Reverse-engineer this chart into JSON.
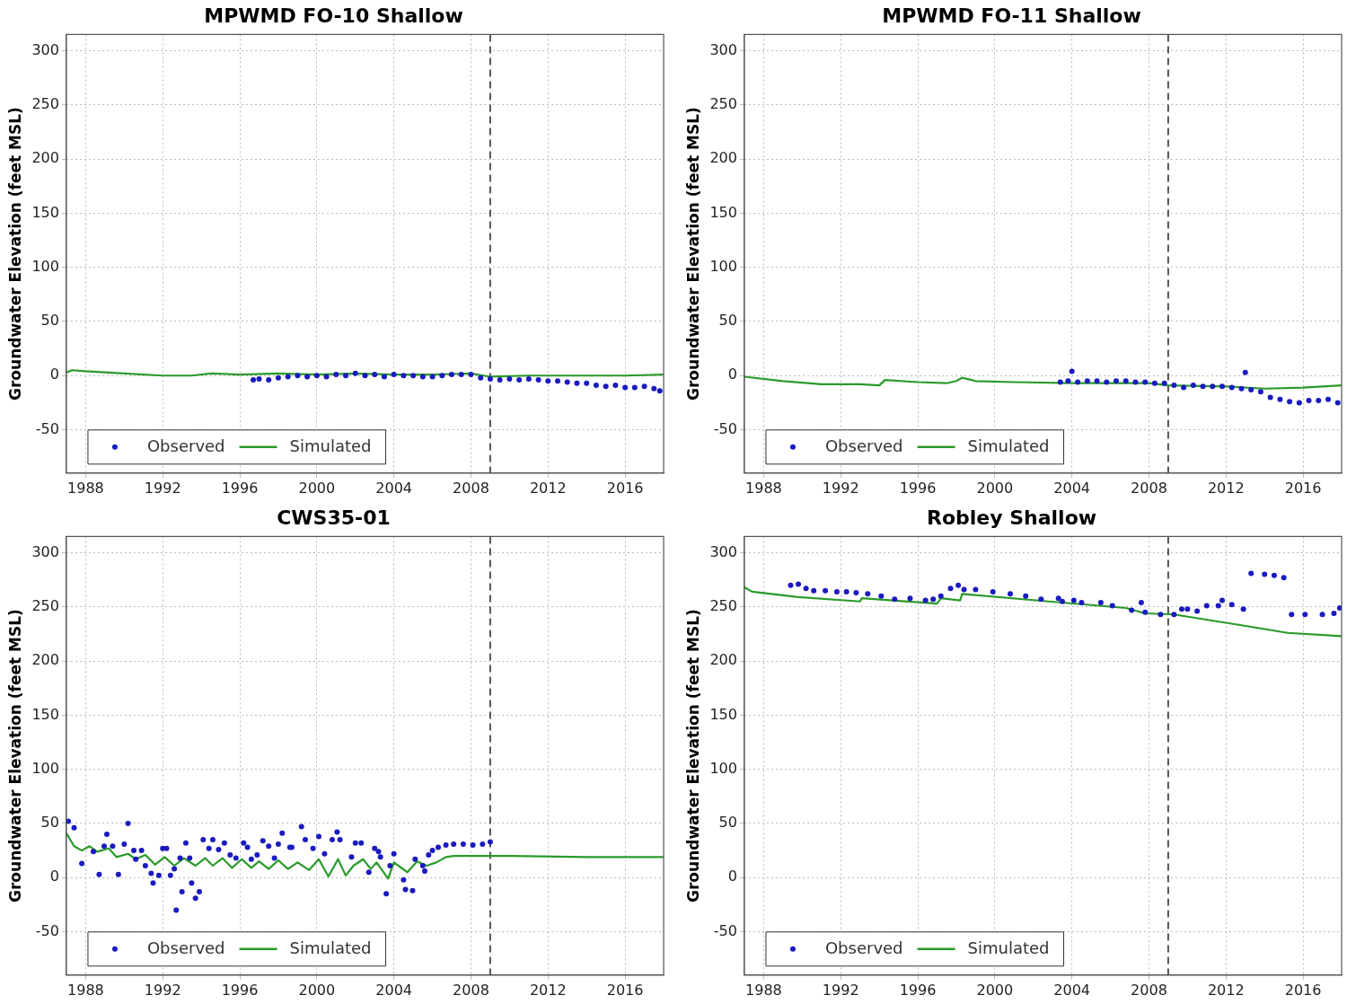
{
  "chart_data": [
    {
      "type": "line",
      "title": "MPWMD FO-10 Shallow",
      "ylabel": "Groundwater Elevation (feet MSL)",
      "xlim": [
        1987,
        2018
      ],
      "xticks": [
        1988,
        1992,
        1996,
        2000,
        2004,
        2008,
        2012,
        2016
      ],
      "ylim": [
        -90,
        315
      ],
      "yticks": [
        -50,
        0,
        50,
        100,
        150,
        200,
        250,
        300
      ],
      "grid": true,
      "legend": "bottom left",
      "ref_lines": [
        {
          "axis": "x",
          "value": 2009,
          "color": "#000000",
          "line_style": "dashed"
        }
      ],
      "series": [
        {
          "name": "Observed",
          "type": "scatter",
          "marker": "circle",
          "color": "#1a1ac0",
          "x": [
            1996.7,
            1997,
            1997.5,
            1998,
            1998.5,
            1999,
            1999.5,
            2000,
            2000.5,
            2001,
            2001.5,
            2002,
            2002.5,
            2003,
            2003.5,
            2004,
            2004.5,
            2005,
            2005.5,
            2006,
            2006.5,
            2007,
            2007.5,
            2008,
            2008.5,
            2009,
            2009.5,
            2010,
            2010.5,
            2011,
            2011.5,
            2012,
            2012.5,
            2013,
            2013.5,
            2014,
            2014.5,
            2015,
            2015.5,
            2016,
            2016.5,
            2017,
            2017.5,
            2017.8
          ],
          "values": [
            -4,
            -3,
            -4,
            -2,
            -1,
            0,
            -1,
            0,
            -1,
            1,
            0,
            2,
            0,
            1,
            -1,
            1,
            0,
            0,
            -1,
            -1,
            0,
            1,
            1,
            1,
            -2,
            -3,
            -4,
            -3,
            -4,
            -3,
            -4,
            -5,
            -5,
            -6,
            -7,
            -7,
            -9,
            -10,
            -9,
            -11,
            -11,
            -10,
            -12,
            -14
          ]
        },
        {
          "name": "Simulated",
          "type": "line",
          "color": "#2a9a2a",
          "x": [
            1987,
            1987.3,
            1988,
            1990,
            1992,
            1993.5,
            1994.5,
            1996,
            1998,
            2000,
            2002,
            2004,
            2006,
            2008,
            2009,
            2011,
            2014,
            2016,
            2018
          ],
          "values": [
            3,
            5,
            4,
            2,
            0,
            0,
            2,
            1,
            2,
            1,
            2,
            1,
            1,
            2,
            -1,
            0,
            0,
            0,
            1
          ]
        }
      ]
    },
    {
      "type": "line",
      "title": "MPWMD FO-11 Shallow",
      "ylabel": "Groundwater Elevation (feet MSL)",
      "xlim": [
        1987,
        2018
      ],
      "xticks": [
        1988,
        1992,
        1996,
        2000,
        2004,
        2008,
        2012,
        2016
      ],
      "ylim": [
        -90,
        315
      ],
      "yticks": [
        -50,
        0,
        50,
        100,
        150,
        200,
        250,
        300
      ],
      "grid": true,
      "legend": "bottom left",
      "ref_lines": [
        {
          "axis": "x",
          "value": 2009,
          "color": "#000000",
          "line_style": "dashed"
        }
      ],
      "series": [
        {
          "name": "Observed",
          "type": "scatter",
          "marker": "circle",
          "color": "#1a1ac0",
          "x": [
            2003.4,
            2003.8,
            2004.0,
            2004.3,
            2004.8,
            2005.3,
            2005.8,
            2006.3,
            2006.8,
            2007.3,
            2007.8,
            2008.3,
            2008.8,
            2009.3,
            2009.8,
            2010.3,
            2010.8,
            2011.3,
            2011.8,
            2012.3,
            2012.8,
            2013.0,
            2013.3,
            2013.8,
            2014.3,
            2014.8,
            2015.3,
            2015.8,
            2016.3,
            2016.8,
            2017.3,
            2017.8
          ],
          "values": [
            -6,
            -5,
            4,
            -6,
            -5,
            -5,
            -6,
            -5,
            -5,
            -6,
            -6,
            -7,
            -7,
            -9,
            -11,
            -9,
            -10,
            -10,
            -10,
            -11,
            -12,
            3,
            -13,
            -15,
            -20,
            -22,
            -24,
            -25,
            -23,
            -23,
            -22,
            -25
          ]
        },
        {
          "name": "Simulated",
          "type": "line",
          "color": "#2a9a2a",
          "x": [
            1987,
            1989,
            1991,
            1993,
            1994,
            1994.3,
            1996,
            1997.5,
            1998,
            1998.3,
            1999,
            2001,
            2004,
            2008,
            2009,
            2012,
            2014,
            2016,
            2018
          ],
          "values": [
            -1,
            -5,
            -8,
            -8,
            -9,
            -4,
            -6,
            -7,
            -5,
            -2,
            -5,
            -6,
            -7,
            -7,
            -9,
            -10,
            -12,
            -11,
            -9
          ]
        }
      ]
    },
    {
      "type": "line",
      "title": "CWS35-01",
      "ylabel": "Groundwater Elevation (feet MSL)",
      "xlim": [
        1987,
        2018
      ],
      "xticks": [
        1988,
        1992,
        1996,
        2000,
        2004,
        2008,
        2012,
        2016
      ],
      "ylim": [
        -90,
        315
      ],
      "yticks": [
        -50,
        0,
        50,
        100,
        150,
        200,
        250,
        300
      ],
      "grid": true,
      "legend": "bottom left",
      "ref_lines": [
        {
          "axis": "x",
          "value": 2009,
          "color": "#000000",
          "line_style": "dashed"
        }
      ],
      "series": [
        {
          "name": "Observed",
          "type": "scatter",
          "marker": "circle",
          "color": "#1a1ac0",
          "x": [
            1987.1,
            1987.4,
            1987.8,
            1988.4,
            1988.7,
            1988.96,
            1989.1,
            1989.4,
            1989.7,
            1990.0,
            1990.2,
            1990.5,
            1990.6,
            1990.9,
            1991.1,
            1991.4,
            1991.5,
            1991.8,
            1992.0,
            1992.2,
            1992.4,
            1992.6,
            1992.7,
            1992.9,
            1993.0,
            1993.2,
            1993.4,
            1993.5,
            1993.7,
            1993.9,
            1994.1,
            1994.4,
            1994.6,
            1994.9,
            1995.2,
            1995.5,
            1995.8,
            1996.2,
            1996.4,
            1996.6,
            1996.9,
            1997.2,
            1997.5,
            1997.8,
            1998.0,
            1998.2,
            1998.6,
            1998.7,
            1999.2,
            1999.4,
            1999.8,
            2000.1,
            2000.4,
            2000.8,
            2001.05,
            2001.2,
            2001.8,
            2002.0,
            2002.3,
            2002.7,
            2003.0,
            2003.2,
            2003.3,
            2003.6,
            2003.8,
            2004.0,
            2004.5,
            2004.6,
            2004.97,
            2005.1,
            2005.5,
            2005.6,
            2005.8,
            2006.0,
            2006.3,
            2006.7,
            2007.1,
            2007.6,
            2008.1,
            2008.6,
            2009.0
          ],
          "values": [
            52,
            46,
            13,
            24,
            3,
            29,
            40,
            29,
            3,
            31,
            50,
            25,
            17,
            25,
            11,
            4,
            -5,
            2,
            27,
            27,
            2,
            8,
            -30,
            18,
            -13,
            32,
            18,
            -5,
            -19,
            -13,
            35,
            27,
            35,
            26,
            32,
            21,
            18,
            32,
            28,
            17,
            21,
            34,
            29,
            18,
            31,
            41,
            28,
            28,
            47,
            35,
            27,
            38,
            22,
            35,
            42,
            35,
            19,
            32,
            32,
            5,
            27,
            24,
            19,
            -15,
            11,
            22,
            -2,
            -11,
            -12,
            17,
            11,
            6,
            21,
            25,
            28,
            30,
            31,
            31,
            30,
            31,
            33
          ]
        },
        {
          "name": "Simulated",
          "type": "line",
          "color": "#2a9a2a",
          "x": [
            1987.0,
            1987.4,
            1987.8,
            1988.2,
            1988.6,
            1989.2,
            1989.6,
            1990.2,
            1990.6,
            1991.1,
            1991.6,
            1992.1,
            1992.6,
            1993.1,
            1993.7,
            1994.2,
            1994.6,
            1995.1,
            1995.6,
            1996.1,
            1996.6,
            1997.0,
            1997.5,
            1998.0,
            1998.5,
            1999.0,
            1999.6,
            2000.1,
            2000.6,
            2001.1,
            2001.5,
            2001.9,
            2002.4,
            2002.8,
            2003.1,
            2003.7,
            2004.0,
            2004.7,
            2005.2,
            2005.7,
            2006.2,
            2006.7,
            2007.1,
            2010,
            2014,
            2018
          ],
          "values": [
            41,
            29,
            25,
            29,
            24,
            27,
            19,
            22,
            17,
            21,
            12,
            19,
            11,
            18,
            11,
            18,
            11,
            18,
            9,
            17,
            9,
            15,
            8,
            16,
            8,
            14,
            7,
            17,
            1,
            17,
            2,
            11,
            17,
            8,
            14,
            -1,
            14,
            5,
            15,
            11,
            14,
            19,
            20,
            20,
            19,
            19
          ]
        }
      ]
    },
    {
      "type": "line",
      "title": "Robley Shallow",
      "ylabel": "Groundwater Elevation (feet MSL)",
      "xlim": [
        1987,
        2018
      ],
      "xticks": [
        1988,
        1992,
        1996,
        2000,
        2004,
        2008,
        2012,
        2016
      ],
      "ylim": [
        -90,
        315
      ],
      "yticks": [
        -50,
        0,
        50,
        100,
        150,
        200,
        250,
        300
      ],
      "grid": true,
      "legend": "bottom left",
      "ref_lines": [
        {
          "axis": "x",
          "value": 2009,
          "color": "#000000",
          "line_style": "dashed"
        }
      ],
      "series": [
        {
          "name": "Observed",
          "type": "scatter",
          "marker": "circle",
          "color": "#1a1ac0",
          "x": [
            1989.4,
            1989.8,
            1990.2,
            1990.6,
            1991.2,
            1991.8,
            1992.3,
            1992.8,
            1993.4,
            1994.1,
            1994.8,
            1995.6,
            1996.4,
            1996.8,
            1997.2,
            1997.7,
            1998.1,
            1998.4,
            1999.0,
            1999.9,
            2000.8,
            2001.6,
            2002.4,
            2003.3,
            2003.5,
            2004.1,
            2004.5,
            2005.5,
            2006.1,
            2007.1,
            2007.6,
            2007.8,
            2008.6,
            2009.3,
            2009.7,
            2010.0,
            2010.5,
            2011.0,
            2011.6,
            2011.8,
            2012.3,
            2012.9,
            2013.3,
            2014.0,
            2014.5,
            2015.0,
            2015.4,
            2016.1,
            2017.0,
            2017.6,
            2017.9
          ],
          "values": [
            270,
            271,
            267,
            265,
            265,
            264,
            264,
            263,
            262,
            260,
            257,
            258,
            256,
            257,
            260,
            267,
            270,
            266,
            266,
            264,
            262,
            260,
            257,
            258,
            255,
            256,
            254,
            254,
            251,
            247,
            254,
            245,
            243,
            243,
            248,
            248,
            246,
            251,
            251,
            256,
            252,
            248,
            281,
            280,
            279,
            277,
            243,
            243,
            243,
            244,
            249
          ]
        },
        {
          "name": "Simulated",
          "type": "line",
          "color": "#2a9a2a",
          "x": [
            1987.0,
            1987.4,
            1989.8,
            1993.0,
            1993.1,
            1997.0,
            1997.2,
            1998.2,
            1998.3,
            2002.8,
            2006.8,
            2007.8,
            2009.3,
            2012.8,
            2015.2,
            2018.0
          ],
          "values": [
            268,
            264,
            259,
            255,
            258,
            253,
            258,
            256,
            262,
            255,
            249,
            244,
            243,
            233,
            226,
            223
          ]
        }
      ]
    }
  ]
}
